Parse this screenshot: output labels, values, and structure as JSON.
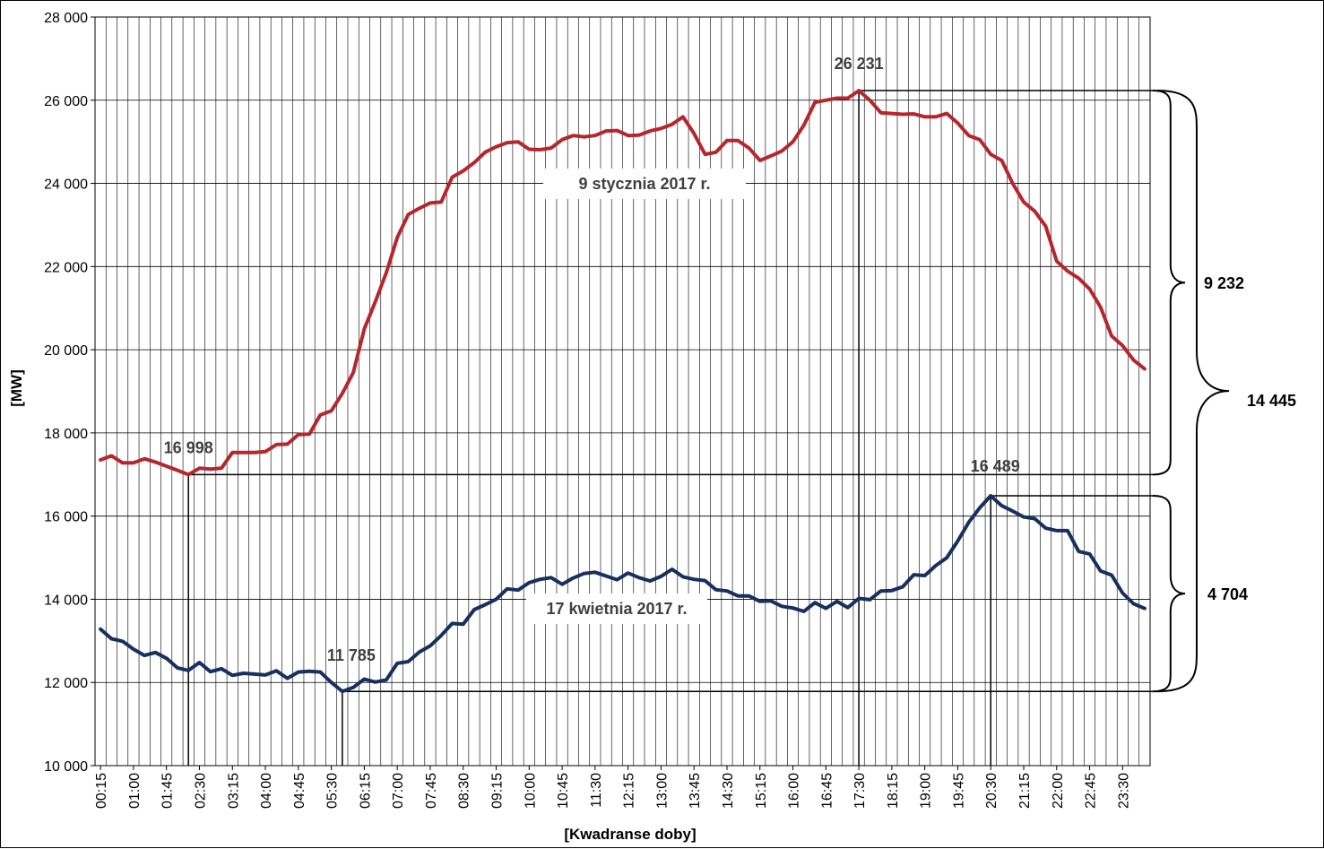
{
  "chart_data": {
    "type": "line",
    "title": "",
    "xlabel": "[Kwadranse doby]",
    "ylabel": "[MW]",
    "ylim": [
      10000,
      28000
    ],
    "yticks": [
      "10 000",
      "12 000",
      "14 000",
      "16 000",
      "18 000",
      "20 000",
      "22 000",
      "24 000",
      "26 000",
      "28 000"
    ],
    "ytick_values": [
      10000,
      12000,
      14000,
      16000,
      18000,
      20000,
      22000,
      24000,
      26000,
      28000
    ],
    "xticks": [
      "00:15",
      "01:00",
      "01:45",
      "02:30",
      "03:15",
      "04:00",
      "04:45",
      "05:30",
      "06:15",
      "07:00",
      "07:45",
      "08:30",
      "09:15",
      "10:00",
      "10:45",
      "11:30",
      "12:15",
      "13:00",
      "13:45",
      "14:30",
      "15:15",
      "16:00",
      "16:45",
      "17:30",
      "18:15",
      "19:00",
      "19:45",
      "20:30",
      "21:15",
      "22:00",
      "22:45",
      "23:30"
    ],
    "grid": true,
    "series": [
      {
        "name": "9 stycznia 2017 r.",
        "color": "#b5272d",
        "values": [
          17350,
          17450,
          17280,
          17280,
          17380,
          17300,
          17200,
          17100,
          16998,
          17150,
          17130,
          17150,
          17530,
          17530,
          17530,
          17550,
          17720,
          17730,
          17960,
          17970,
          18430,
          18530,
          18950,
          19450,
          20500,
          21150,
          21850,
          22700,
          23250,
          23400,
          23530,
          23550,
          24150,
          24300,
          24500,
          24750,
          24880,
          24980,
          25000,
          24820,
          24810,
          24850,
          25050,
          25150,
          25120,
          25150,
          25260,
          25270,
          25150,
          25160,
          25260,
          25320,
          25420,
          25600,
          25200,
          24700,
          24750,
          25030,
          25030,
          24850,
          24550,
          24660,
          24780,
          25000,
          25400,
          25950,
          26000,
          26050,
          26050,
          26231,
          26000,
          25700,
          25680,
          25660,
          25670,
          25600,
          25600,
          25680,
          25450,
          25150,
          25050,
          24700,
          24550,
          24000,
          23550,
          23330,
          22970,
          22130,
          21890,
          21720,
          21460,
          21020,
          20330,
          20100,
          19750,
          19540
        ],
        "annotations": [
          {
            "label": "16 998",
            "index": 8,
            "value": 16998
          },
          {
            "label": "26 231",
            "index": 69,
            "value": 26231
          }
        ]
      },
      {
        "name": "17 kwietnia 2017 r.",
        "color": "#17305e",
        "values": [
          13280,
          13050,
          12990,
          12800,
          12650,
          12720,
          12580,
          12350,
          12290,
          12480,
          12260,
          12330,
          12170,
          12220,
          12200,
          12180,
          12280,
          12100,
          12250,
          12270,
          12250,
          12000,
          11785,
          11880,
          12080,
          12010,
          12060,
          12460,
          12500,
          12730,
          12880,
          13130,
          13420,
          13400,
          13750,
          13870,
          14000,
          14250,
          14220,
          14400,
          14480,
          14520,
          14360,
          14510,
          14620,
          14650,
          14560,
          14470,
          14630,
          14520,
          14440,
          14550,
          14720,
          14540,
          14480,
          14450,
          14230,
          14200,
          14080,
          14080,
          13950,
          13960,
          13830,
          13790,
          13710,
          13920,
          13780,
          13950,
          13800,
          14020,
          13990,
          14200,
          14210,
          14300,
          14590,
          14570,
          14810,
          15000,
          15400,
          15850,
          16200,
          16489,
          16250,
          16120,
          15980,
          15940,
          15710,
          15650,
          15650,
          15150,
          15090,
          14680,
          14580,
          14150,
          13890,
          13780
        ],
        "annotations": [
          {
            "label": "11 785",
            "index": 22,
            "value": 11785
          },
          {
            "label": "16 489",
            "index": 81,
            "value": 16489
          }
        ]
      }
    ],
    "braces": [
      {
        "label": "9 232",
        "from": 16998,
        "to": 26231
      },
      {
        "label": "4 704",
        "from": 11785,
        "to": 16489
      },
      {
        "label": "14 445",
        "from": 11785,
        "to": 26231
      }
    ]
  }
}
